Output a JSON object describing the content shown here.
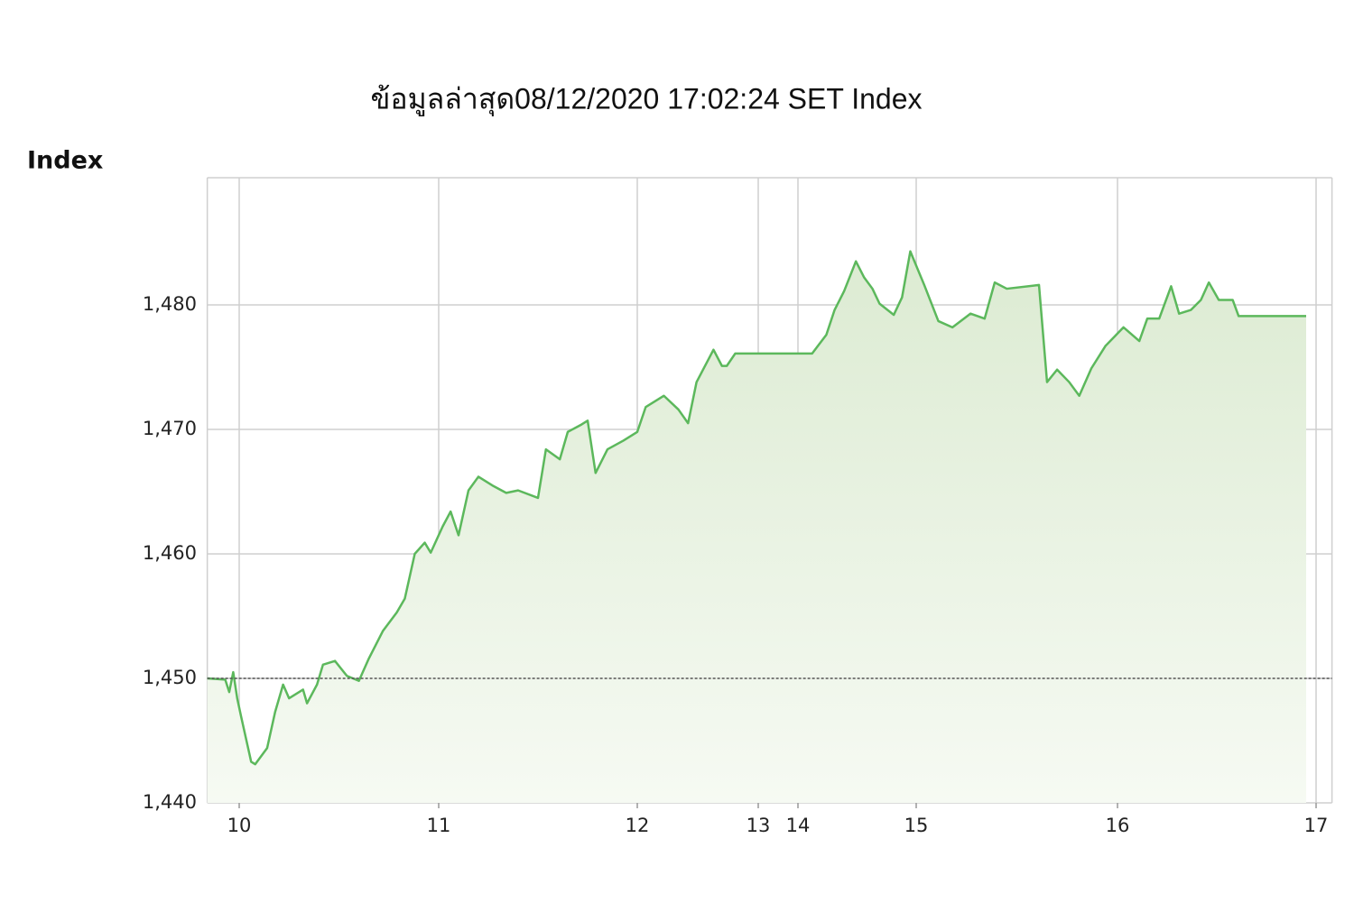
{
  "chart_data": {
    "type": "area",
    "title": "ข้อมูลล่าสุด08/12/2020 17:02:24  SET Index",
    "y_label": "Index",
    "color": "#5cb85c",
    "grid": true,
    "reference_line": 1450,
    "xlim": [
      9.84,
      17.08
    ],
    "xticks": [
      10,
      11,
      12,
      13,
      14,
      15,
      16,
      17
    ],
    "ylim": [
      1440,
      1490
    ],
    "yticks": [
      {
        "value": 1440,
        "label": "1,440"
      },
      {
        "value": 1450,
        "label": "1,450"
      },
      {
        "value": 1460,
        "label": "1,460"
      },
      {
        "value": 1470,
        "label": "1,470"
      },
      {
        "value": 1480,
        "label": "1,480"
      }
    ],
    "x": [
      9.84,
      9.93,
      9.95,
      9.97,
      9.99,
      10.01,
      10.06,
      10.08,
      10.14,
      10.18,
      10.22,
      10.25,
      10.32,
      10.34,
      10.39,
      10.42,
      10.48,
      10.54,
      10.6,
      10.65,
      10.72,
      10.79,
      10.83,
      10.88,
      10.93,
      10.96,
      11.02,
      11.06,
      11.1,
      11.15,
      11.2,
      11.27,
      11.34,
      11.4,
      11.5,
      11.54,
      11.61,
      11.65,
      11.72,
      11.75,
      11.79,
      11.85,
      11.93,
      12.0,
      12.07,
      12.22,
      12.34,
      12.42,
      12.49,
      12.63,
      12.7,
      12.74,
      12.81,
      13.0,
      14.0,
      14.12,
      14.24,
      14.31,
      14.39,
      14.49,
      14.56,
      14.63,
      14.69,
      14.81,
      14.88,
      14.95,
      15.04,
      15.11,
      15.18,
      15.27,
      15.34,
      15.39,
      15.45,
      15.61,
      15.65,
      15.7,
      15.76,
      15.81,
      15.87,
      15.94,
      16.03,
      16.11,
      16.15,
      16.21,
      16.27,
      16.31,
      16.37,
      16.42,
      16.46,
      16.51,
      16.58,
      16.61,
      16.95
    ],
    "values": [
      1450.0,
      1449.9,
      1448.9,
      1450.5,
      1448.4,
      1446.9,
      1443.3,
      1443.1,
      1444.4,
      1447.3,
      1449.5,
      1448.4,
      1449.1,
      1448.0,
      1449.5,
      1451.1,
      1451.4,
      1450.2,
      1449.8,
      1451.6,
      1453.8,
      1455.3,
      1456.4,
      1460.0,
      1460.9,
      1460.1,
      1462.2,
      1463.4,
      1461.5,
      1465.1,
      1466.2,
      1465.5,
      1464.9,
      1465.1,
      1464.5,
      1468.4,
      1467.6,
      1469.8,
      1470.4,
      1470.7,
      1466.5,
      1468.4,
      1469.1,
      1469.8,
      1471.8,
      1472.7,
      1471.6,
      1470.5,
      1473.8,
      1476.4,
      1475.1,
      1475.1,
      1476.1,
      1476.1,
      1476.1,
      1476.1,
      1477.6,
      1479.6,
      1481.1,
      1483.5,
      1482.2,
      1481.3,
      1480.1,
      1479.2,
      1480.6,
      1484.3,
      1481.6,
      1478.7,
      1478.2,
      1479.3,
      1478.9,
      1481.8,
      1481.3,
      1481.6,
      1473.8,
      1474.8,
      1473.8,
      1472.7,
      1474.9,
      1476.7,
      1478.2,
      1477.1,
      1478.9,
      1478.9,
      1481.5,
      1479.3,
      1479.6,
      1480.4,
      1481.8,
      1480.4,
      1480.4,
      1479.1,
      1479.1
    ]
  }
}
